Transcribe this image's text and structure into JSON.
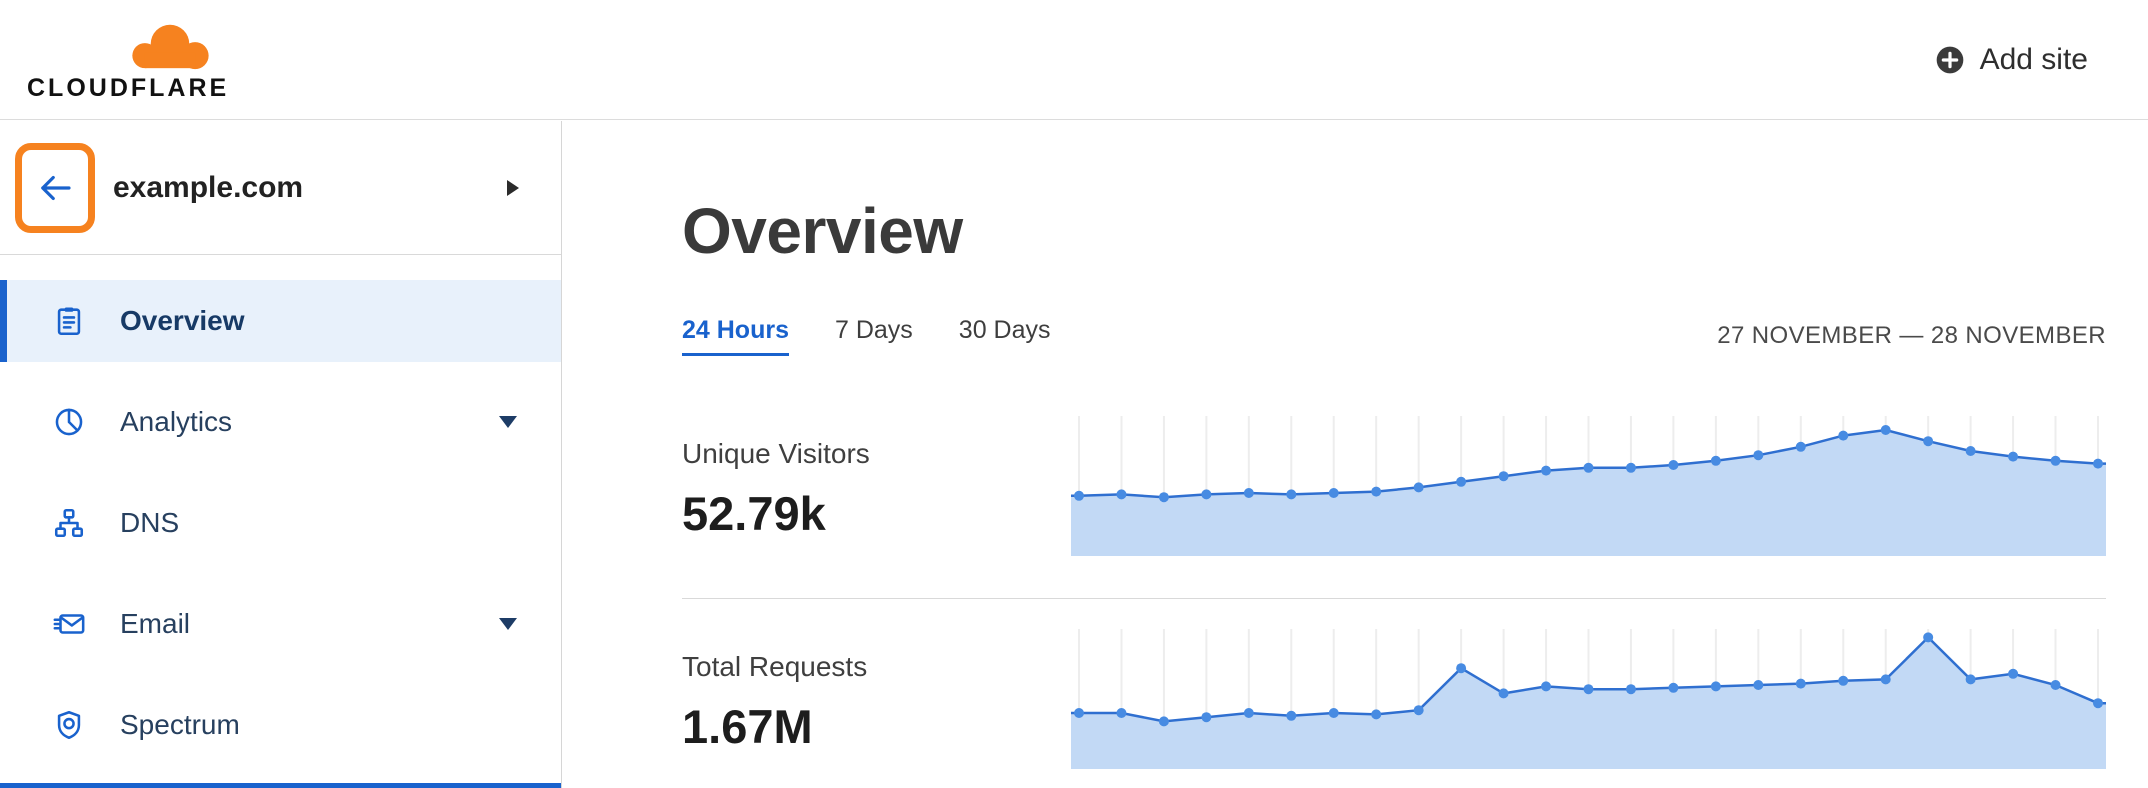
{
  "topbar": {
    "logo_text": "CLOUDFLARE",
    "add_site_label": "Add site"
  },
  "sidebar": {
    "site_name": "example.com",
    "items": [
      {
        "label": "Overview",
        "icon": "clipboard-icon",
        "active": true,
        "has_caret": false
      },
      {
        "label": "Analytics",
        "icon": "pie-chart-icon",
        "active": false,
        "has_caret": true
      },
      {
        "label": "DNS",
        "icon": "dns-nodes-icon",
        "active": false,
        "has_caret": false
      },
      {
        "label": "Email",
        "icon": "email-icon",
        "active": false,
        "has_caret": true
      },
      {
        "label": "Spectrum",
        "icon": "spectrum-badge-icon",
        "active": false,
        "has_caret": false
      }
    ]
  },
  "main": {
    "title": "Overview",
    "tabs": [
      {
        "label": "24 Hours",
        "active": true
      },
      {
        "label": "7 Days",
        "active": false
      },
      {
        "label": "30 Days",
        "active": false
      }
    ],
    "date_range": "27 NOVEMBER — 28 NOVEMBER",
    "metrics": [
      {
        "label": "Unique Visitors",
        "value": "52.79k"
      },
      {
        "label": "Total Requests",
        "value": "1.67M"
      }
    ]
  },
  "colors": {
    "brand_orange": "#f6821f",
    "link_blue": "#1962cd",
    "active_item_bg": "#e8f1fb",
    "annotation_highlight": "#f6821f",
    "chart_line": "#2f6fd0",
    "chart_dot": "#478be2",
    "chart_area": "#c2d9f5",
    "chart_grid": "#ededed"
  },
  "chart_data": [
    {
      "type": "area",
      "title": "Unique Visitors",
      "displayed_total": "52.79k",
      "x": "24-hour window, hourly points (axis unlabeled)",
      "x_labels": [],
      "ylabel": "",
      "values_unit": "relative height % (no visible axis scale)",
      "ylim": [
        0,
        100
      ],
      "grid": "vertical-only",
      "legend": false,
      "values": [
        43,
        44,
        42,
        44,
        45,
        44,
        45,
        46,
        49,
        53,
        57,
        61,
        63,
        63,
        65,
        68,
        72,
        78,
        86,
        90,
        82,
        75,
        71,
        68,
        66
      ],
      "line_color": "#2f6fd0",
      "dot_color": "#478be2",
      "area_color": "#c2d9f5",
      "grid_color": "#ededed"
    },
    {
      "type": "area",
      "title": "Total Requests",
      "displayed_total": "1.67M",
      "x": "24-hour window, hourly points (axis unlabeled)",
      "x_labels": [],
      "ylabel": "",
      "values_unit": "relative height % (no visible axis scale)",
      "ylim": [
        0,
        100
      ],
      "grid": "vertical-only",
      "legend": false,
      "values": [
        40,
        40,
        34,
        37,
        40,
        38,
        40,
        39,
        42,
        72,
        54,
        59,
        57,
        57,
        58,
        59,
        60,
        61,
        63,
        64,
        94,
        64,
        68,
        60,
        47
      ],
      "line_color": "#2f6fd0",
      "dot_color": "#478be2",
      "area_color": "#c2d9f5",
      "grid_color": "#ededed"
    }
  ]
}
